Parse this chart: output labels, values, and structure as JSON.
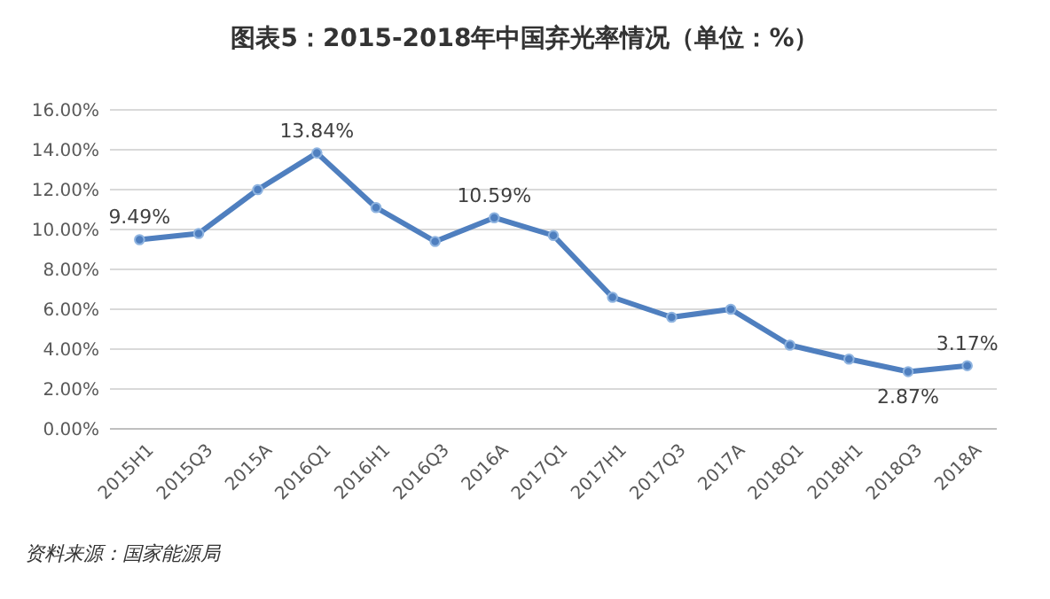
{
  "chart_data": {
    "type": "line",
    "title": "图表5：2015-2018年中国弃光率情况（单位：%）",
    "categories": [
      "2015H1",
      "2015Q3",
      "2015A",
      "2016Q1",
      "2016H1",
      "2016Q3",
      "2016A",
      "2017Q1",
      "2017H1",
      "2017Q3",
      "2017A",
      "2018Q1",
      "2018H1",
      "2018Q3",
      "2018A"
    ],
    "series": [
      {
        "color": "#4f7fbf",
        "values": [
          9.49,
          9.8,
          12.0,
          13.84,
          11.1,
          9.4,
          10.59,
          9.7,
          6.6,
          5.6,
          6.0,
          4.2,
          3.5,
          2.87,
          3.17
        ],
        "value_labels": [
          "9.49%",
          null,
          null,
          "13.84%",
          null,
          null,
          "10.59%",
          null,
          null,
          null,
          null,
          null,
          null,
          "2.87%",
          "3.17%"
        ]
      }
    ],
    "ylim": [
      0,
      16
    ],
    "yticks": [
      {
        "value": 0,
        "label": "0.00%"
      },
      {
        "value": 2,
        "label": "2.00%"
      },
      {
        "value": 4,
        "label": "4.00%"
      },
      {
        "value": 6,
        "label": "6.00%"
      },
      {
        "value": 8,
        "label": "8.00%"
      },
      {
        "value": 10,
        "label": "10.00%"
      },
      {
        "value": 12,
        "label": "12.00%"
      },
      {
        "value": 14,
        "label": "14.00%"
      },
      {
        "value": 16,
        "label": "16.00%"
      }
    ],
    "grid": "y",
    "marker": "circle",
    "line_style": "solid",
    "annotations": [
      "资料来源：国家能源局"
    ]
  }
}
